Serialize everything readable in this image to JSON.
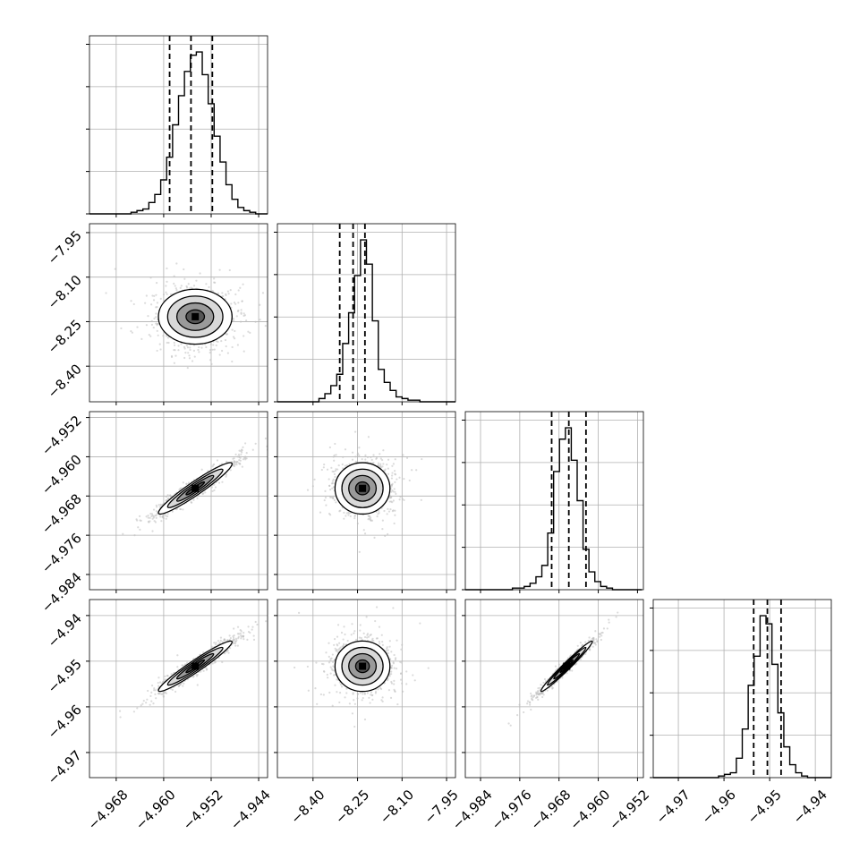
{
  "figure": {
    "type": "corner-plot",
    "background": "#ffffff",
    "line_color": "#000000",
    "grid_color": "#b0b0b0",
    "point_color": "#bdbdbd"
  },
  "chart_data": {
    "type": "corner",
    "grid": true,
    "quantile_lines": "dashed",
    "params": [
      {
        "id": "p1",
        "range": [
          -4.9725,
          -4.9425
        ],
        "ticks": [
          -4.968,
          -4.96,
          -4.952,
          -4.944
        ],
        "tick_labels": [
          "−4.968",
          "−4.960",
          "−4.952",
          "−4.944"
        ],
        "quantiles": [
          -4.959,
          -4.9554,
          -4.9518
        ]
      },
      {
        "id": "p2",
        "range": [
          -8.52,
          -7.92
        ],
        "ticks": [
          -8.4,
          -8.25,
          -8.1,
          -7.95
        ],
        "tick_labels": [
          "−8.40",
          "−8.25",
          "−8.10",
          "−7.95"
        ],
        "quantiles": [
          -8.31,
          -8.265,
          -8.225
        ]
      },
      {
        "id": "p3",
        "range": [
          -4.9871,
          -4.9508
        ],
        "ticks": [
          -4.984,
          -4.976,
          -4.968,
          -4.96,
          -4.952
        ],
        "tick_labels": [
          "−4.984",
          "−4.976",
          "−4.968",
          "−4.960",
          "−4.952"
        ],
        "quantiles": [
          -4.9695,
          -4.966,
          -4.9625
        ]
      },
      {
        "id": "p4",
        "range": [
          -4.9755,
          -4.9365
        ],
        "ticks": [
          -4.97,
          -4.96,
          -4.95,
          -4.94
        ],
        "tick_labels": [
          "−4.97",
          "−4.96",
          "−4.95",
          "−4.94"
        ],
        "quantiles": [
          -4.9535,
          -4.9505,
          -4.9475
        ]
      }
    ],
    "histograms": [
      {
        "param": "p1",
        "edges": [
          -4.9725,
          -4.9715,
          -4.9705,
          -4.9695,
          -4.9685,
          -4.9675,
          -4.9665,
          -4.9655,
          -4.9645,
          -4.9635,
          -4.9625,
          -4.9615,
          -4.9605,
          -4.9595,
          -4.9585,
          -4.9575,
          -4.9565,
          -4.9555,
          -4.9545,
          -4.9535,
          -4.9525,
          -4.9515,
          -4.9505,
          -4.9495,
          -4.9485,
          -4.9475,
          -4.9465,
          -4.9455,
          -4.9445,
          -4.9435,
          -4.9425
        ],
        "counts": [
          0,
          0,
          0,
          0,
          0,
          0,
          0,
          1,
          2,
          3,
          7,
          12,
          21,
          35,
          55,
          73,
          88,
          98,
          100,
          86,
          68,
          48,
          32,
          18,
          9,
          4,
          2,
          1,
          0,
          0
        ]
      },
      {
        "param": "p2",
        "edges": [
          -8.52,
          -8.5,
          -8.48,
          -8.46,
          -8.44,
          -8.42,
          -8.4,
          -8.38,
          -8.36,
          -8.34,
          -8.32,
          -8.3,
          -8.28,
          -8.26,
          -8.24,
          -8.22,
          -8.2,
          -8.18,
          -8.16,
          -8.14,
          -8.12,
          -8.1,
          -8.08,
          -8.06,
          -8.04,
          -8.02,
          -8.0,
          -7.98,
          -7.96,
          -7.94,
          -7.92
        ],
        "counts": [
          0,
          0,
          0,
          0,
          0,
          0,
          0,
          2,
          5,
          10,
          17,
          36,
          55,
          78,
          100,
          85,
          50,
          20,
          12,
          7,
          3,
          2,
          1,
          1,
          0,
          0,
          0,
          0,
          0,
          0
        ]
      },
      {
        "param": "p3",
        "edges": [
          -4.9871,
          -4.9859,
          -4.9847,
          -4.9835,
          -4.9823,
          -4.9811,
          -4.9799,
          -4.9787,
          -4.9775,
          -4.9763,
          -4.9751,
          -4.9739,
          -4.9727,
          -4.9715,
          -4.9703,
          -4.9691,
          -4.9679,
          -4.9667,
          -4.9655,
          -4.9643,
          -4.9631,
          -4.9619,
          -4.9607,
          -4.9595,
          -4.9583,
          -4.9571,
          -4.9559,
          -4.9547,
          -4.9535,
          -4.9523,
          -4.9511
        ],
        "counts": [
          0,
          0,
          0,
          0,
          0,
          0,
          0,
          0,
          1,
          1,
          2,
          4,
          8,
          15,
          35,
          73,
          93,
          100,
          80,
          55,
          25,
          11,
          5,
          2,
          1,
          0,
          0,
          0,
          0,
          0
        ]
      },
      {
        "param": "p4",
        "edges": [
          -4.9755,
          -4.9742,
          -4.9729,
          -4.9716,
          -4.9703,
          -4.969,
          -4.9677,
          -4.9664,
          -4.9651,
          -4.9638,
          -4.9625,
          -4.9612,
          -4.9599,
          -4.9586,
          -4.9573,
          -4.956,
          -4.9547,
          -4.9534,
          -4.9521,
          -4.9508,
          -4.9495,
          -4.9482,
          -4.9469,
          -4.9456,
          -4.9443,
          -4.943,
          -4.9417,
          -4.9404,
          -4.9391,
          -4.9378,
          -4.9365
        ],
        "counts": [
          0,
          0,
          0,
          0,
          0,
          0,
          0,
          0,
          0,
          0,
          0,
          1,
          2,
          3,
          12,
          30,
          57,
          75,
          100,
          95,
          70,
          40,
          19,
          8,
          3,
          1,
          0,
          0,
          0,
          0
        ]
      }
    ],
    "correlations": [
      {
        "x": "p1",
        "y": "p2",
        "r": 0.0
      },
      {
        "x": "p1",
        "y": "p3",
        "r": 0.95
      },
      {
        "x": "p2",
        "y": "p3",
        "r": 0.0
      },
      {
        "x": "p1",
        "y": "p4",
        "r": 0.96
      },
      {
        "x": "p2",
        "y": "p4",
        "r": 0.0
      },
      {
        "x": "p3",
        "y": "p4",
        "r": 0.98
      }
    ],
    "histogram_y_ticks": 4
  }
}
